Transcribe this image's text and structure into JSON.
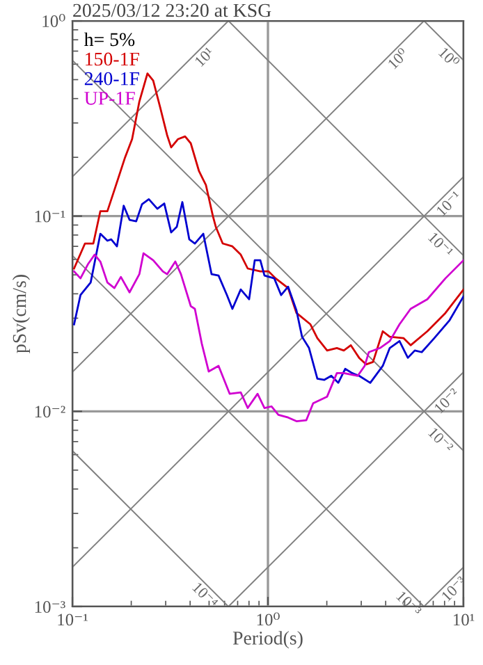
{
  "chart_data": {
    "type": "line",
    "title": "2025/03/12 23:20 at KSG",
    "xlabel": "Period(s)",
    "ylabel": "pSv(cm/s)",
    "legend_title": "h= 5%",
    "log": "xy",
    "grid": true,
    "legend": "top left",
    "line_style": "solid",
    "xlim": [
      0.1,
      10
    ],
    "ylim": [
      0.001,
      1
    ],
    "xticks": [
      {
        "value": 0.1,
        "label": "10⁻¹"
      },
      {
        "value": 1,
        "label": "10⁰"
      },
      {
        "value": 10,
        "label": "10¹"
      }
    ],
    "yticks": [
      {
        "value": 0.001,
        "label": "10⁻³"
      },
      {
        "value": 0.01,
        "label": "10⁻²"
      },
      {
        "value": 0.1,
        "label": "10⁻¹"
      },
      {
        "value": 1,
        "label": "10⁰"
      }
    ],
    "series": [
      {
        "type": "line",
        "color": "#808080",
        "x": [
          0.1,
          0.628
        ],
        "values": [
          0.00628,
          0.001
        ]
      },
      {
        "type": "line",
        "color": "#808080",
        "x": [
          0.1,
          6.28
        ],
        "values": [
          0.0628,
          0.001
        ]
      },
      {
        "type": "line",
        "color": "#808080",
        "x": [
          0.1,
          10
        ],
        "values": [
          0.628,
          0.00628
        ]
      },
      {
        "type": "line",
        "color": "#808080",
        "x": [
          0.628,
          10
        ],
        "values": [
          1,
          0.0628
        ]
      },
      {
        "type": "line",
        "color": "#808080",
        "x": [
          6.28,
          10
        ],
        "values": [
          1,
          0.628
        ]
      },
      {
        "type": "line",
        "color": "#808080",
        "x": [
          6.28,
          10
        ],
        "values": [
          0.001,
          0.00159
        ]
      },
      {
        "type": "line",
        "color": "#808080",
        "x": [
          0.628,
          10
        ],
        "values": [
          0.001,
          0.0159
        ]
      },
      {
        "type": "line",
        "color": "#808080",
        "x": [
          0.1,
          10
        ],
        "values": [
          0.00159,
          0.159
        ]
      },
      {
        "type": "line",
        "color": "#808080",
        "x": [
          0.1,
          6.28
        ],
        "values": [
          0.0159,
          1
        ]
      },
      {
        "type": "line",
        "color": "#808080",
        "x": [
          0.1,
          0.628
        ],
        "values": [
          0.159,
          1
        ]
      },
      {
        "type": "line",
        "name": "150-1F",
        "color": "#d40000",
        "x": [
          0.102,
          0.116,
          0.128,
          0.139,
          0.151,
          0.164,
          0.186,
          0.202,
          0.22,
          0.242,
          0.259,
          0.281,
          0.305,
          0.32,
          0.347,
          0.377,
          0.403,
          0.444,
          0.482,
          0.523,
          0.541,
          0.587,
          0.658,
          0.726,
          0.788,
          0.914,
          1.008,
          1.094,
          1.268,
          1.399,
          1.649,
          1.789,
          2.007,
          2.251,
          2.443,
          2.652,
          2.926,
          3.176,
          3.445,
          3.866,
          4.196,
          4.943,
          5.365,
          6.53,
          8.083,
          10
        ],
        "values": [
          0.0539,
          0.0724,
          0.0724,
          0.106,
          0.106,
          0.136,
          0.2,
          0.248,
          0.386,
          0.538,
          0.494,
          0.361,
          0.26,
          0.225,
          0.248,
          0.256,
          0.236,
          0.17,
          0.144,
          0.1,
          0.0882,
          0.0724,
          0.07,
          0.0635,
          0.0539,
          0.0521,
          0.0521,
          0.048,
          0.0428,
          0.0319,
          0.0279,
          0.0237,
          0.0205,
          0.0211,
          0.0205,
          0.0218,
          0.0188,
          0.0174,
          0.0179,
          0.0257,
          0.0241,
          0.0237,
          0.0218,
          0.0257,
          0.0319,
          0.0421
        ]
      },
      {
        "type": "line",
        "name": "240-1F",
        "color": "#0000d0",
        "x": [
          0.102,
          0.11,
          0.124,
          0.139,
          0.151,
          0.158,
          0.169,
          0.183,
          0.196,
          0.212,
          0.227,
          0.246,
          0.272,
          0.295,
          0.32,
          0.342,
          0.365,
          0.396,
          0.423,
          0.467,
          0.515,
          0.559,
          0.617,
          0.658,
          0.726,
          0.801,
          0.856,
          0.914,
          0.96,
          1.077,
          1.168,
          1.268,
          1.399,
          1.494,
          1.622,
          1.789,
          1.943,
          2.108,
          2.288,
          2.483,
          2.696,
          2.926,
          3.335,
          3.866,
          4.196,
          4.706,
          5.192,
          5.635,
          6.116,
          7.088,
          8.491,
          10
        ],
        "values": [
          0.0279,
          0.0394,
          0.0457,
          0.0812,
          0.0748,
          0.076,
          0.07,
          0.113,
          0.0957,
          0.0941,
          0.115,
          0.122,
          0.109,
          0.116,
          0.0825,
          0.0882,
          0.118,
          0.076,
          0.0724,
          0.0812,
          0.0504,
          0.0496,
          0.0394,
          0.0335,
          0.0421,
          0.0375,
          0.0594,
          0.0594,
          0.0496,
          0.048,
          0.0394,
          0.0435,
          0.0329,
          0.0241,
          0.0211,
          0.0147,
          0.0145,
          0.0152,
          0.014,
          0.0165,
          0.0157,
          0.0152,
          0.014,
          0.0171,
          0.0211,
          0.0229,
          0.0188,
          0.0205,
          0.0201,
          0.0237,
          0.0293,
          0.0388
        ]
      },
      {
        "type": "line",
        "name": "UP-1F",
        "color": "#d000d0",
        "x": [
          0.102,
          0.11,
          0.12,
          0.13,
          0.139,
          0.151,
          0.164,
          0.177,
          0.196,
          0.22,
          0.231,
          0.259,
          0.29,
          0.305,
          0.336,
          0.359,
          0.403,
          0.423,
          0.459,
          0.498,
          0.559,
          0.637,
          0.726,
          0.788,
          0.885,
          0.96,
          1.042,
          1.131,
          1.268,
          1.399,
          1.57,
          1.703,
          2.007,
          2.251,
          2.443,
          2.878,
          3.124,
          3.281,
          3.741,
          4.196,
          4.706,
          5.365,
          6.53,
          8.083,
          10
        ],
        "values": [
          0.0521,
          0.048,
          0.0566,
          0.0635,
          0.0585,
          0.0457,
          0.0428,
          0.0488,
          0.0407,
          0.0504,
          0.0645,
          0.0594,
          0.0521,
          0.0504,
          0.0585,
          0.0504,
          0.0346,
          0.0335,
          0.0222,
          0.016,
          0.0171,
          0.0123,
          0.0125,
          0.0104,
          0.0123,
          0.0104,
          0.0106,
          0.0096,
          0.0093,
          0.0089,
          0.009,
          0.011,
          0.0119,
          0.0157,
          0.0157,
          0.0152,
          0.0171,
          0.0201,
          0.0211,
          0.0229,
          0.0279,
          0.0335,
          0.0375,
          0.048,
          0.0594
        ]
      }
    ],
    "annotations": [
      {
        "text": "10¹",
        "x": 0.45,
        "y": 0.716
      },
      {
        "text": "10⁰",
        "x": 4.4,
        "y": 0.7
      },
      {
        "text": "10⁰",
        "x": 8.8,
        "y": 0.714
      },
      {
        "text": "10⁻¹",
        "x": 8.0,
        "y": 0.127
      },
      {
        "text": "10⁻¹",
        "x": 8.0,
        "y": 0.0785
      },
      {
        "text": "10⁻²",
        "x": 7.8,
        "y": 0.0124
      },
      {
        "text": "10⁻²",
        "x": 8.0,
        "y": 0.00785
      },
      {
        "text": "10⁻⁴",
        "x": 0.5,
        "y": 0.00126
      },
      {
        "text": "10⁻³",
        "x": 5.5,
        "y": 0.00114
      },
      {
        "text": "10⁻³",
        "x": 8.5,
        "y": 0.00135
      }
    ]
  }
}
